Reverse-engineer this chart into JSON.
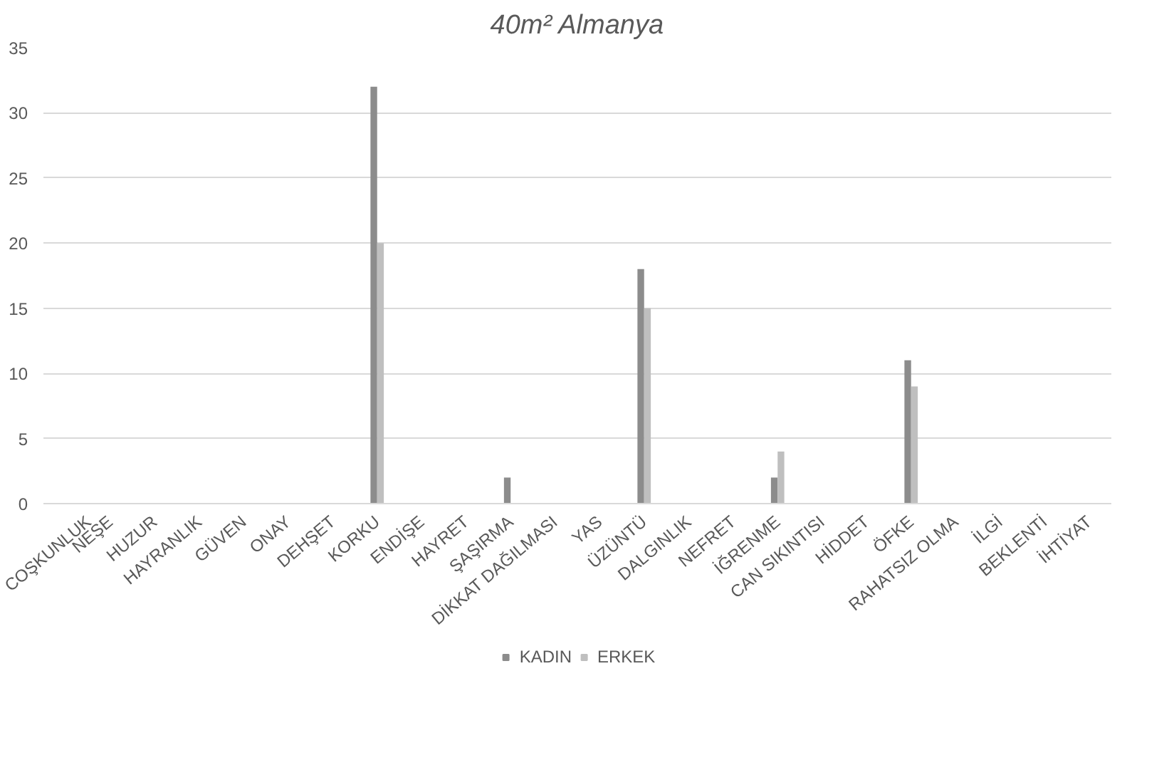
{
  "chart_data": {
    "type": "bar",
    "title": "40m² Almanya",
    "categories": [
      "COŞKUNLUK",
      "NEŞE",
      "HUZUR",
      "HAYRANLIK",
      "GÜVEN",
      "ONAY",
      "DEHŞET",
      "KORKU",
      "ENDİŞE",
      "HAYRET",
      "ŞAŞIRMA",
      "DİKKAT DAĞILMASI",
      "YAS",
      "ÜZÜNTÜ",
      "DALGINLIK",
      "NEFRET",
      "İĞRENME",
      "CAN SIKINTISI",
      "HİDDET",
      "ÖFKE",
      "RAHATSIZ OLMA",
      "İLGİ",
      "BEKLENTİ",
      "İHTİYAT"
    ],
    "series": [
      {
        "name": "KADIN",
        "color": "#8c8c8c",
        "values": [
          0,
          0,
          0,
          0,
          0,
          0,
          0,
          32,
          0,
          0,
          2,
          0,
          0,
          18,
          0,
          0,
          2,
          0,
          0,
          11,
          0,
          0,
          0,
          0
        ]
      },
      {
        "name": "ERKEK",
        "color": "#bfbfbf",
        "values": [
          0,
          0,
          0,
          0,
          0,
          0,
          0,
          20,
          0,
          0,
          0,
          0,
          0,
          15,
          0,
          0,
          4,
          0,
          0,
          9,
          0,
          0,
          0,
          0
        ]
      }
    ],
    "ylim": [
      0,
      35
    ],
    "yticks": [
      0,
      5,
      10,
      15,
      20,
      25,
      30,
      35
    ],
    "grid": "y",
    "legend": "bottom"
  }
}
